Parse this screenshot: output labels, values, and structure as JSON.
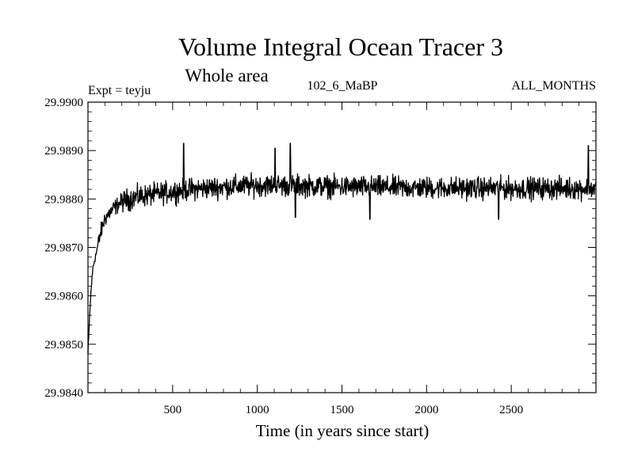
{
  "chart_data": {
    "type": "line",
    "title": "Volume Integral Ocean Tracer 3",
    "subtitle": "Whole area",
    "experiment_label": "Expt = teyju",
    "run_label": "102_6_MaBP",
    "months_label": "ALL_MONTHS",
    "xlabel": "Time (in years since start)",
    "ylabel": "",
    "xlim": [
      0,
      3000
    ],
    "ylim": [
      29.984,
      29.99
    ],
    "x_ticks": [
      500,
      1000,
      1500,
      2000,
      2500
    ],
    "x_tick_labels": [
      "500",
      "1000",
      "1500",
      "2000",
      "2500"
    ],
    "y_ticks": [
      29.984,
      29.985,
      29.986,
      29.987,
      29.988,
      29.989,
      29.99
    ],
    "y_tick_labels": [
      "29.9840",
      "29.9850",
      "29.9860",
      "29.9870",
      "29.9880",
      "29.9890",
      "29.9900"
    ],
    "grid": false,
    "series": [
      {
        "name": "Volume Integral Ocean Tracer 3",
        "color": "#000000",
        "description_points": {
          "x": [
            0,
            10,
            20,
            30,
            50,
            75,
            100,
            150,
            200,
            300,
            400,
            500,
            600,
            800,
            1000,
            1200,
            1500,
            2000,
            2500,
            3000
          ],
          "y": [
            29.9848,
            29.9856,
            29.9862,
            29.9866,
            29.9869,
            29.9873,
            29.9876,
            29.9878,
            29.98795,
            29.98805,
            29.9881,
            29.98815,
            29.9882,
            29.98825,
            29.98828,
            29.98828,
            29.98825,
            29.98823,
            29.98822,
            29.98822
          ]
        },
        "noise_amplitude": 0.00033,
        "peaks": [
          {
            "x": 565,
            "y": 29.98915
          },
          {
            "x": 1195,
            "y": 29.98915
          },
          {
            "x": 1105,
            "y": 29.98905
          },
          {
            "x": 2955,
            "y": 29.9891
          }
        ],
        "troughs": [
          {
            "x": 1225,
            "y": 29.98762
          },
          {
            "x": 1665,
            "y": 29.98758
          },
          {
            "x": 2425,
            "y": 29.98758
          }
        ]
      }
    ]
  }
}
